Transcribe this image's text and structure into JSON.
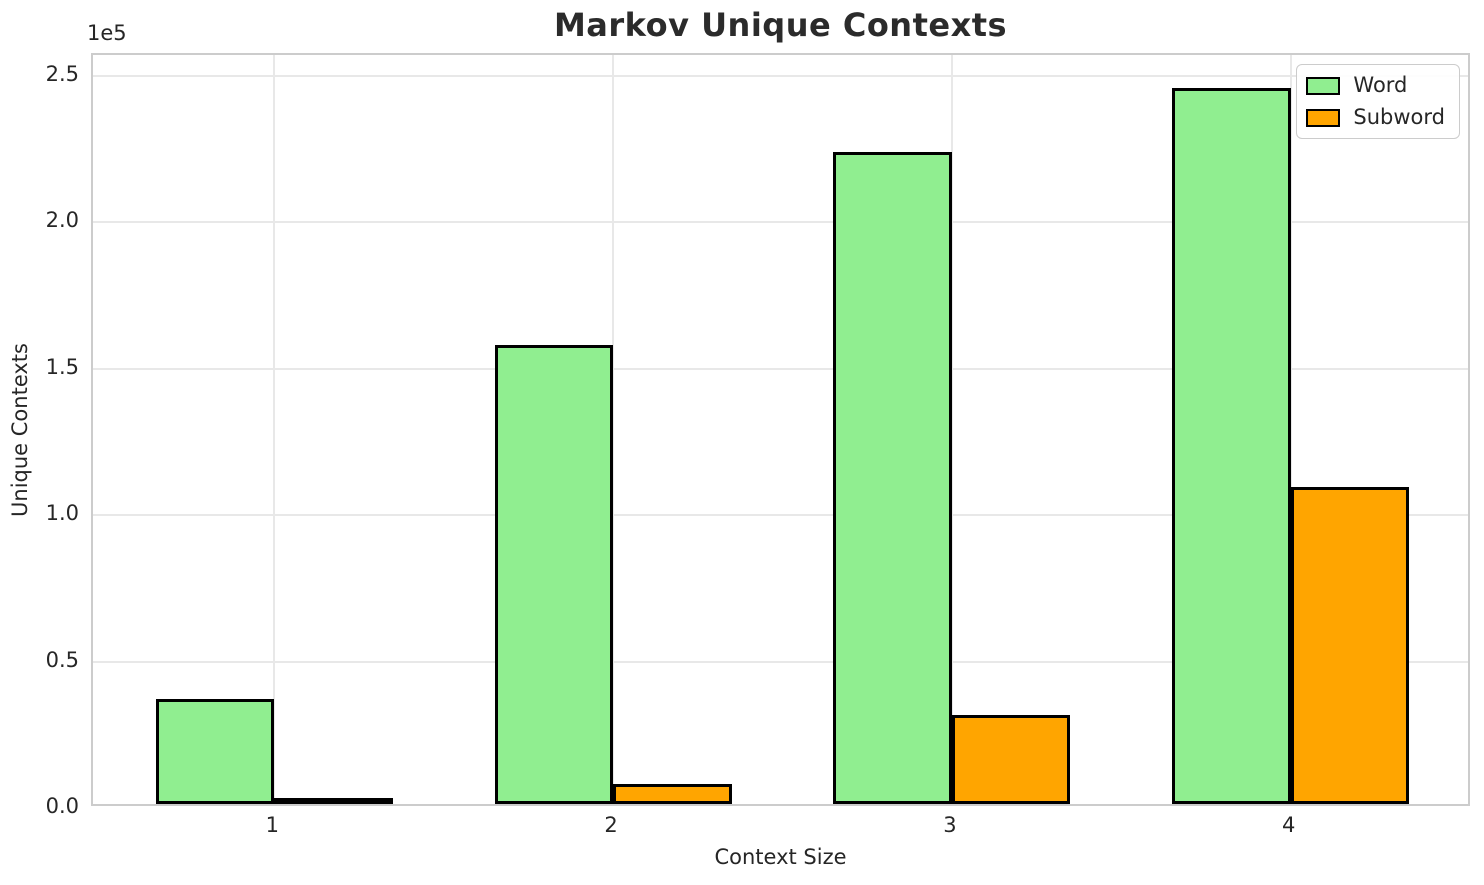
{
  "chart_data": {
    "type": "bar",
    "title": "Markov Unique Contexts",
    "xlabel": "Context Size",
    "ylabel": "Unique Contexts",
    "y_scale_text": "1e5",
    "categories": [
      1,
      2,
      3,
      4
    ],
    "x_tick_labels": [
      "1",
      "2",
      "3",
      "4"
    ],
    "y_tick_labels": [
      "0.0",
      "0.5",
      "1.0",
      "1.5",
      "2.0",
      "2.5"
    ],
    "y_tick_values": [
      0,
      50000,
      100000,
      150000,
      200000,
      250000
    ],
    "series": [
      {
        "name": "Word",
        "color": "#90EE90",
        "values": [
          36000,
          156500,
          222500,
          244500
        ]
      },
      {
        "name": "Subword",
        "color": "#FFA500",
        "values": [
          1200,
          6800,
          30500,
          108200
        ]
      }
    ],
    "bar_width": 0.35,
    "bar_edge_color": "#000000",
    "ylim": [
      0,
      257000
    ],
    "xlim": [
      0.465,
      4.535
    ],
    "grid": true,
    "legend_position": "upper right",
    "grid_color": "#e8e8e8",
    "spine_color": "#cccccc"
  }
}
